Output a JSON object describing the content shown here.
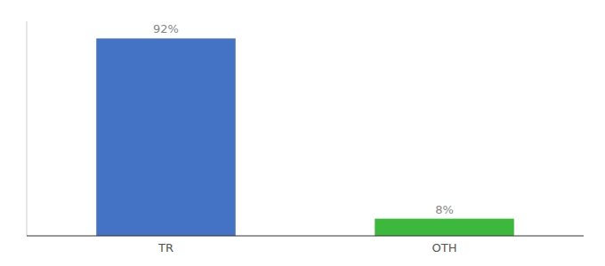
{
  "chart_data": {
    "type": "bar",
    "categories": [
      "TR",
      "OTH"
    ],
    "values": [
      92,
      8
    ],
    "value_labels": [
      "92%",
      "8%"
    ],
    "colors": [
      "#4472c4",
      "#3cb83c"
    ],
    "ylim": [
      0,
      100
    ],
    "tick_labels": "x",
    "data_labels": true,
    "grid": false
  }
}
